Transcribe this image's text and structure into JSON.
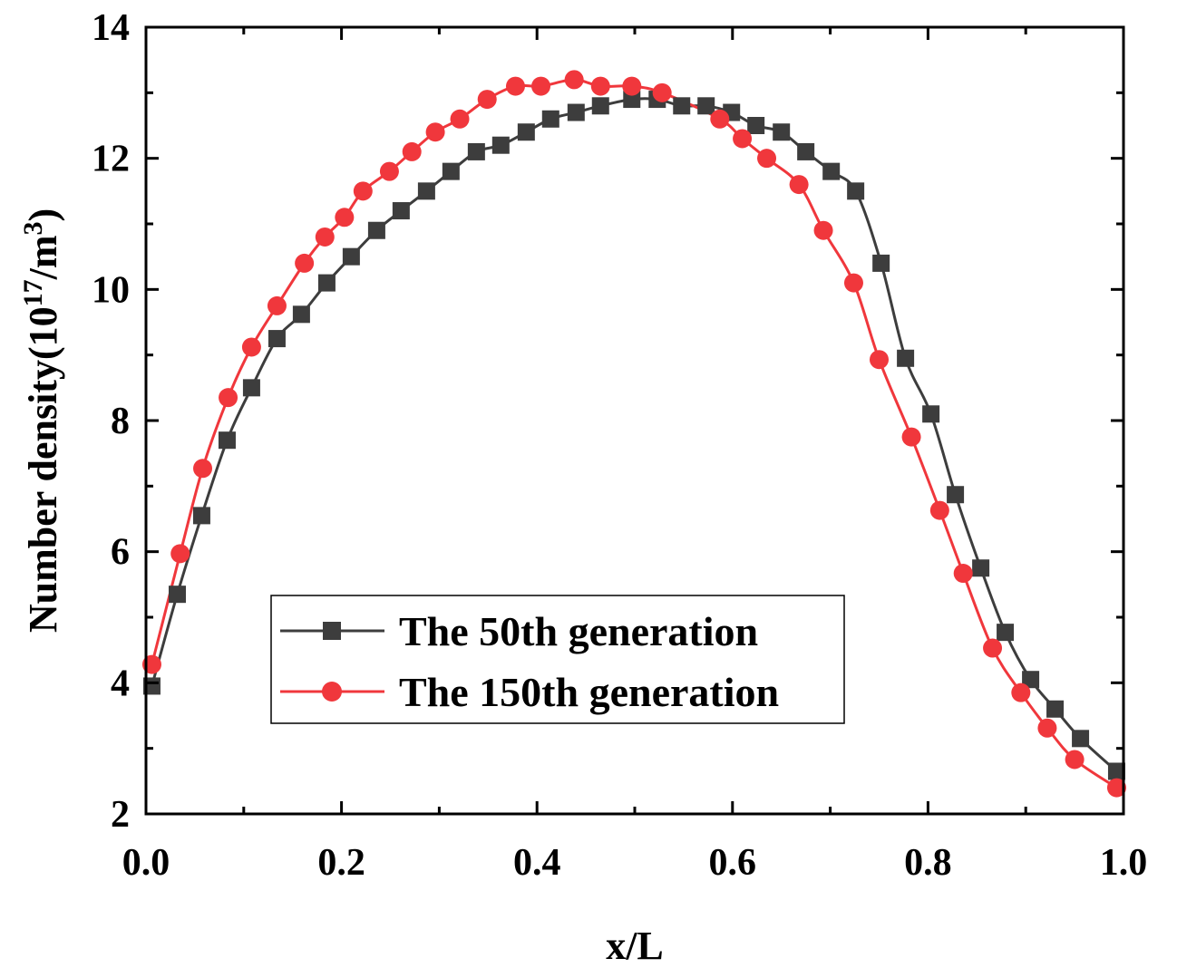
{
  "chart_data": {
    "type": "line",
    "xlabel": "x/L",
    "ylabel": "Number density(10",
    "ylabel_sup": "17",
    "ylabel_mid": "/m",
    "ylabel_sup2": "3",
    "ylabel_end": ")",
    "xlim": [
      0.0,
      1.0
    ],
    "ylim": [
      2,
      14
    ],
    "xticks": [
      "0.0",
      "0.2",
      "0.4",
      "0.6",
      "0.8",
      "1.0"
    ],
    "yticks": [
      "2",
      "4",
      "6",
      "8",
      "10",
      "12",
      "14"
    ],
    "grid": false,
    "legend_position": "lower-left",
    "series": [
      {
        "name": "The 50th generation",
        "marker": "square",
        "color": "#3d3d3d",
        "x": [
          0.006,
          0.032,
          0.057,
          0.083,
          0.108,
          0.134,
          0.159,
          0.185,
          0.21,
          0.236,
          0.261,
          0.287,
          0.312,
          0.338,
          0.363,
          0.389,
          0.414,
          0.44,
          0.465,
          0.497,
          0.523,
          0.548,
          0.573,
          0.599,
          0.624,
          0.65,
          0.675,
          0.701,
          0.726,
          0.752,
          0.777,
          0.803,
          0.828,
          0.854,
          0.879,
          0.905,
          0.93,
          0.956,
          0.993
        ],
        "y": [
          3.95,
          5.35,
          6.55,
          7.7,
          8.5,
          9.25,
          9.62,
          10.1,
          10.5,
          10.9,
          11.2,
          11.5,
          11.8,
          12.1,
          12.2,
          12.4,
          12.6,
          12.7,
          12.8,
          12.9,
          12.9,
          12.8,
          12.8,
          12.7,
          12.5,
          12.4,
          12.1,
          11.8,
          11.5,
          10.4,
          8.95,
          8.1,
          6.87,
          5.75,
          4.77,
          4.05,
          3.6,
          3.15,
          2.65
        ]
      },
      {
        "name": "The 150th generation",
        "marker": "circle",
        "color": "#f0373c",
        "x": [
          0.006,
          0.035,
          0.058,
          0.084,
          0.108,
          0.134,
          0.162,
          0.183,
          0.203,
          0.222,
          0.249,
          0.272,
          0.296,
          0.321,
          0.349,
          0.378,
          0.404,
          0.438,
          0.465,
          0.497,
          0.528,
          0.587,
          0.61,
          0.635,
          0.668,
          0.693,
          0.724,
          0.75,
          0.783,
          0.812,
          0.836,
          0.866,
          0.895,
          0.922,
          0.95,
          0.993
        ],
        "y": [
          4.28,
          5.97,
          7.27,
          8.35,
          9.12,
          9.75,
          10.4,
          10.8,
          11.1,
          11.5,
          11.8,
          12.1,
          12.4,
          12.6,
          12.9,
          13.1,
          13.1,
          13.2,
          13.1,
          13.1,
          13.0,
          12.6,
          12.3,
          12.0,
          11.6,
          10.9,
          10.1,
          8.93,
          7.75,
          6.63,
          5.67,
          4.53,
          3.85,
          3.31,
          2.83,
          2.4
        ]
      }
    ]
  }
}
